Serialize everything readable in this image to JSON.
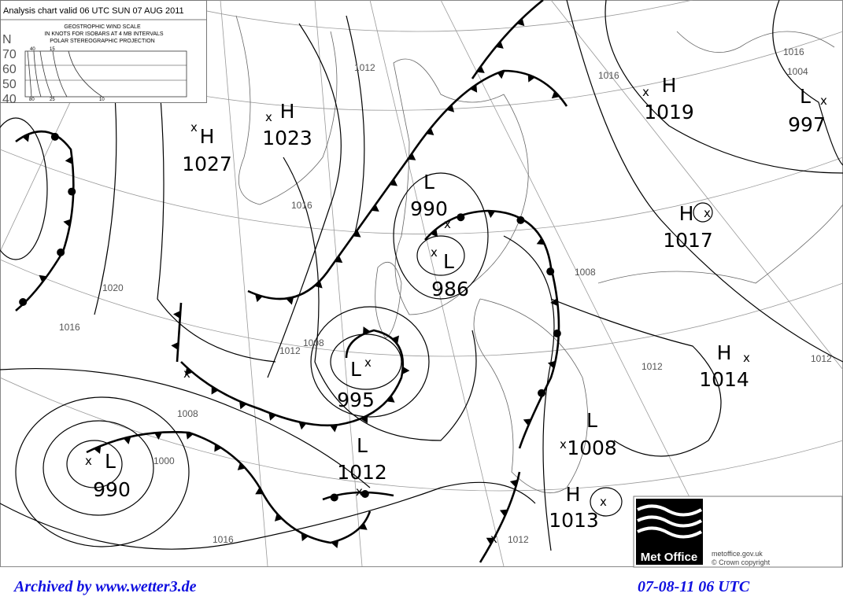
{
  "chart": {
    "title": "Analysis chart valid 06 UTC SUN 07 AUG 2011",
    "legend": {
      "heading": "GEOSTROPHIC WIND SCALE",
      "line2": "IN KNOTS FOR ISOBARS AT  4 MB INTERVALS",
      "line3": "POLAR STEREOGRAPHIC PROJECTION",
      "lat_unit": "N",
      "latitudes": [
        "70",
        "60",
        "50",
        "40"
      ],
      "top_speeds": [
        "40",
        "15"
      ],
      "bottom_speeds": [
        "80",
        "25",
        "10"
      ]
    },
    "pressure_centres": [
      {
        "type": "H",
        "value": "1027"
      },
      {
        "type": "H",
        "value": "1023"
      },
      {
        "type": "H",
        "value": "1019"
      },
      {
        "type": "L",
        "value": "997"
      },
      {
        "type": "L",
        "value": "990"
      },
      {
        "type": "L",
        "value": "986"
      },
      {
        "type": "H",
        "value": "1017"
      },
      {
        "type": "H",
        "value": "1014"
      },
      {
        "type": "L",
        "value": "995"
      },
      {
        "type": "L",
        "value": "1012"
      },
      {
        "type": "L",
        "value": "990"
      },
      {
        "type": "L",
        "value": "1008"
      },
      {
        "type": "H",
        "value": "1013"
      }
    ],
    "isobar_labels": [
      "1012",
      "1008",
      "1016",
      "1020",
      "1016",
      "1008",
      "1012",
      "1012",
      "1016",
      "1008",
      "1004",
      "1016",
      "1012",
      "1000",
      "1016",
      "1012"
    ],
    "logo": {
      "text": "Met Office",
      "url": "metoffice.gov.uk",
      "copyright": "©  Crown copyright"
    }
  },
  "footer": {
    "archive": "Archived by www.wetter3.de",
    "timestamp": "07-08-11 06 UTC"
  }
}
